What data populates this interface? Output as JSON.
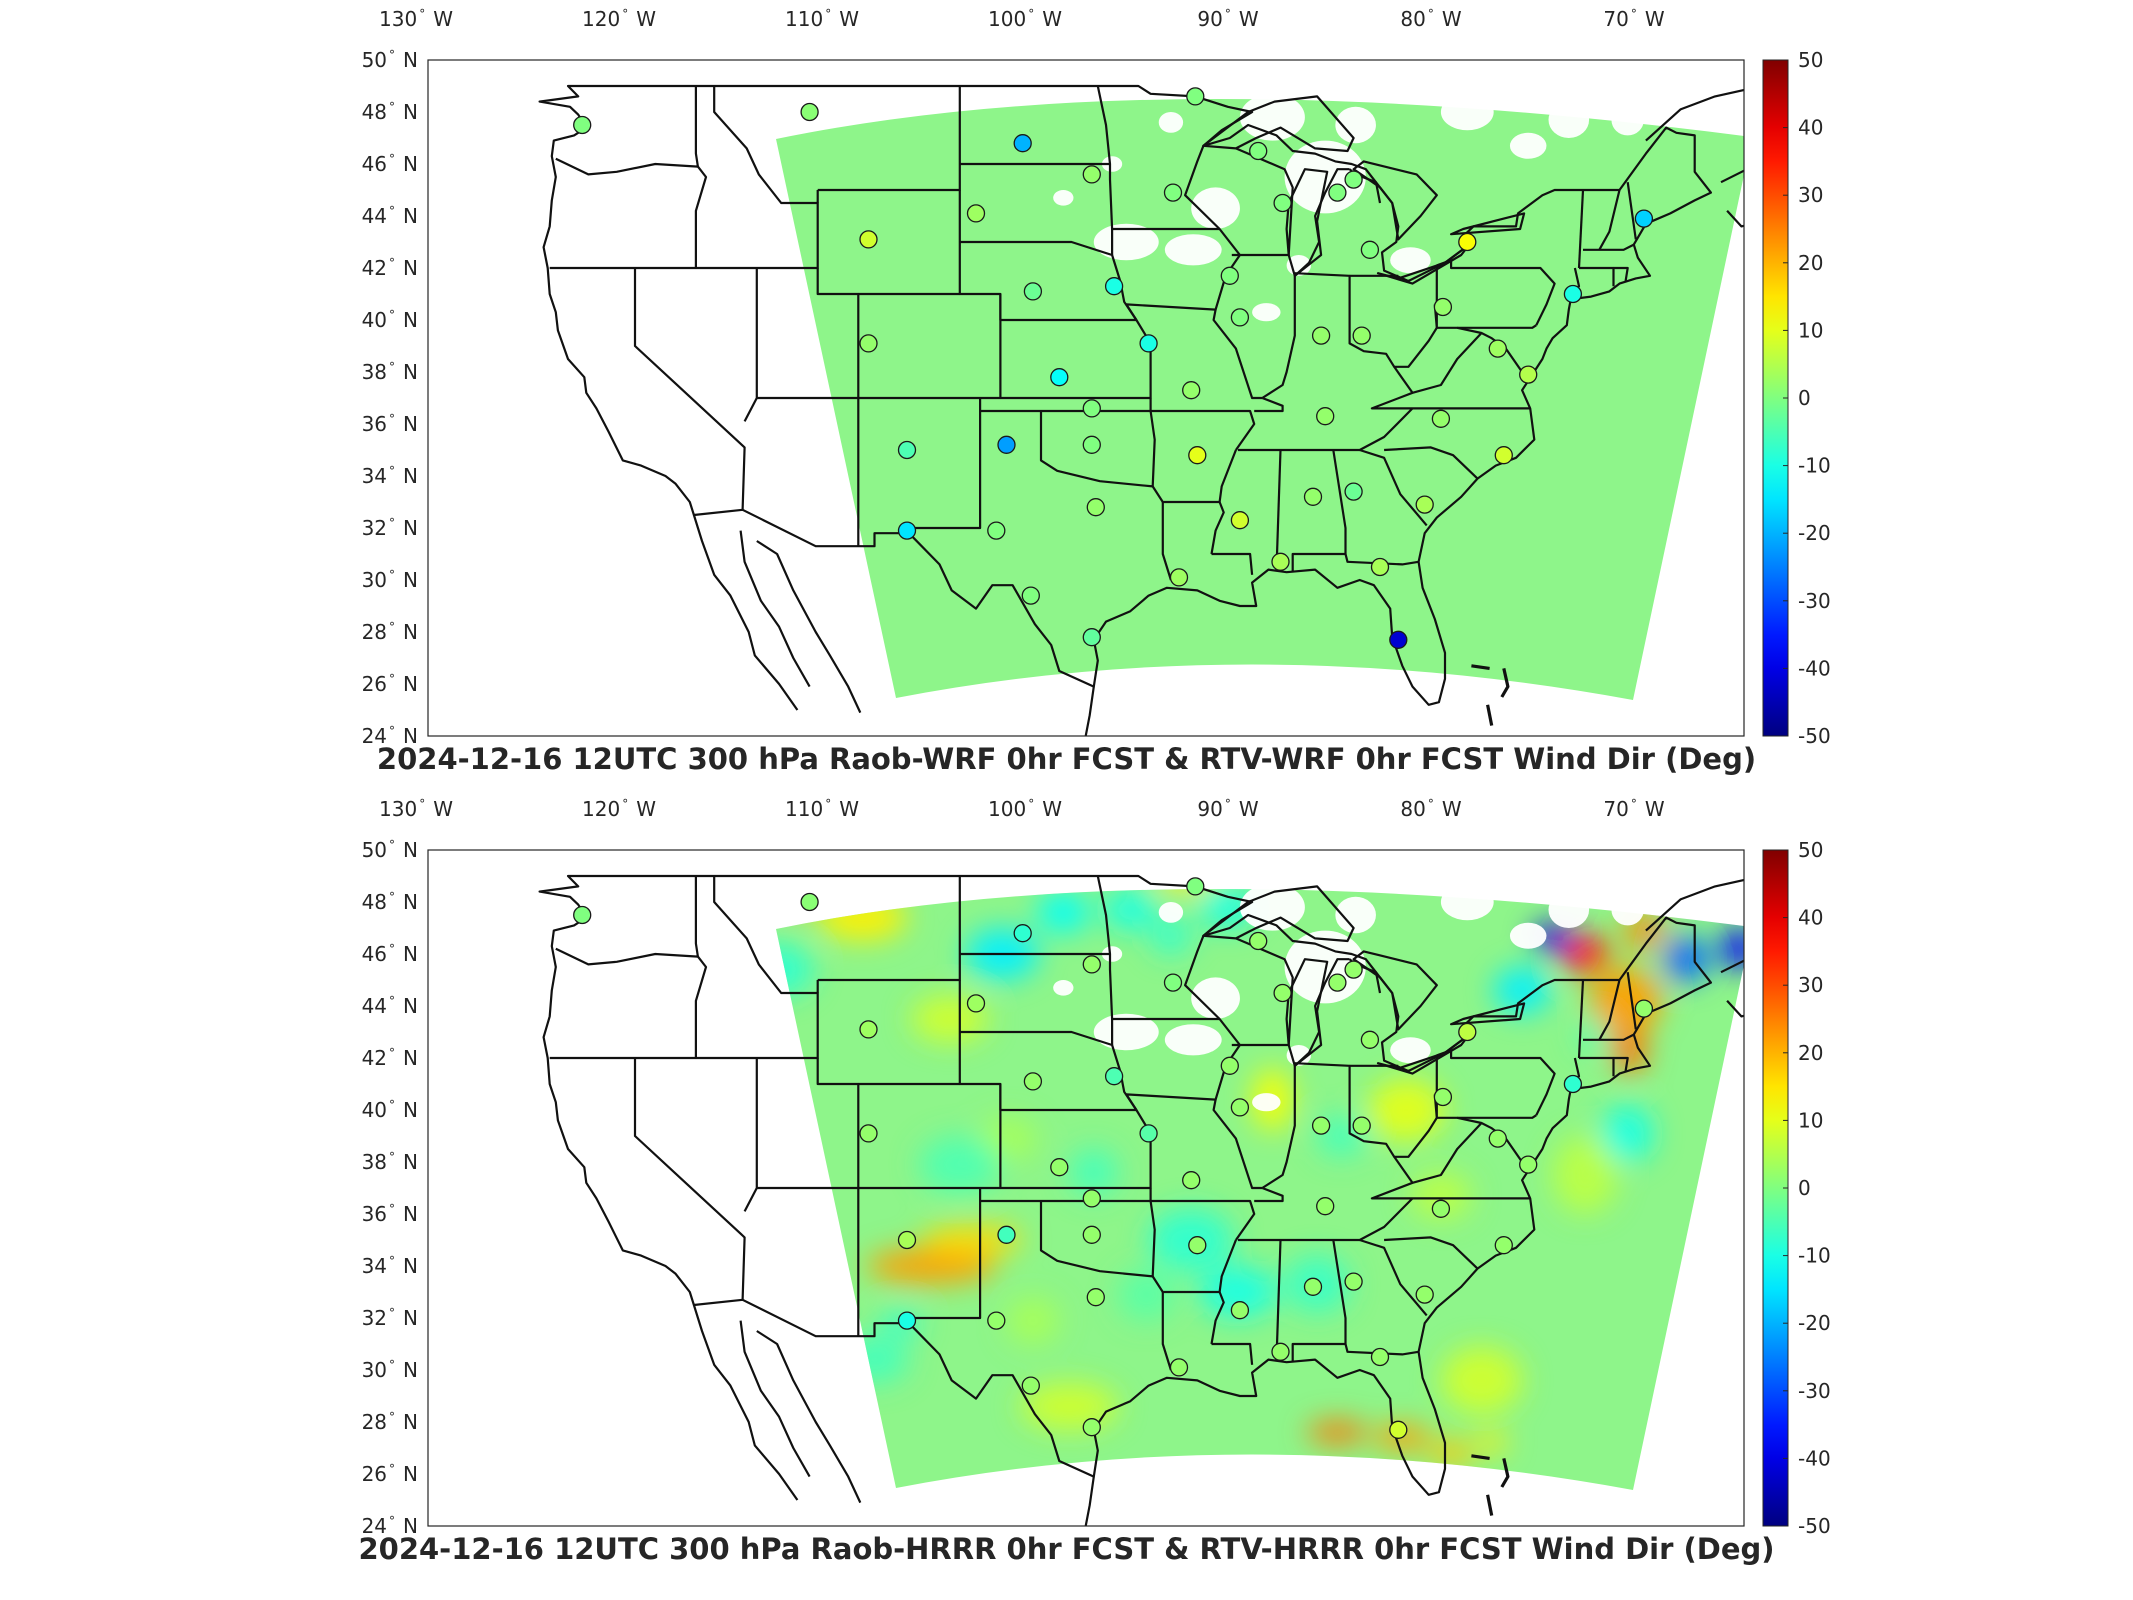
{
  "panels": [
    {
      "id": "wrf",
      "title": "2024-12-16 12UTC 300 hPa Raob-WRF 0hr FCST & RTV-WRF 0hr FCST Wind Dir (Deg)",
      "field": "flat"
    },
    {
      "id": "hrrr",
      "title": "2024-12-16 12UTC 300 hPa Raob-HRRR 0hr FCST & RTV-HRRR 0hr FCST Wind Dir (Deg)",
      "field": "varied"
    }
  ],
  "longitude_ticks": [
    "130",
    "120",
    "110",
    "100",
    "90",
    "80",
    "70"
  ],
  "longitude_hemisphere": "W",
  "latitude_ticks": [
    "50",
    "48",
    "46",
    "44",
    "42",
    "40",
    "38",
    "36",
    "34",
    "32",
    "30",
    "28",
    "26",
    "24"
  ],
  "latitude_hemisphere": "N",
  "degree_symbol": "°",
  "colorbar": {
    "ticks": [
      "50",
      "40",
      "30",
      "20",
      "10",
      "0",
      "-10",
      "-20",
      "-30",
      "-40",
      "-50"
    ],
    "min": -50,
    "max": 50,
    "colormap": "jet"
  },
  "colors": {
    "zero_field": "#8ef58a",
    "state_lines": "#111111",
    "station_outline": "#1a1a1a"
  },
  "stations_top": [
    {
      "lon": -122.6,
      "lat": 47.5,
      "v": 0
    },
    {
      "lon": -111.4,
      "lat": 48.0,
      "v": 1
    },
    {
      "lon": -100.9,
      "lat": 46.8,
      "v": -20
    },
    {
      "lon": -97.5,
      "lat": 45.6,
      "v": 2
    },
    {
      "lon": -93.5,
      "lat": 44.9,
      "v": 0
    },
    {
      "lon": -92.4,
      "lat": 48.6,
      "v": 0
    },
    {
      "lon": -108.5,
      "lat": 43.1,
      "v": 8
    },
    {
      "lon": -103.2,
      "lat": 44.1,
      "v": 3
    },
    {
      "lon": -100.4,
      "lat": 41.1,
      "v": -2
    },
    {
      "lon": -96.4,
      "lat": 41.3,
      "v": -10
    },
    {
      "lon": -108.5,
      "lat": 39.1,
      "v": 2
    },
    {
      "lon": -94.7,
      "lat": 39.1,
      "v": -10
    },
    {
      "lon": -99.1,
      "lat": 37.8,
      "v": -12
    },
    {
      "lon": -97.5,
      "lat": 36.6,
      "v": 0
    },
    {
      "lon": -97.5,
      "lat": 35.2,
      "v": 0
    },
    {
      "lon": -92.3,
      "lat": 34.8,
      "v": 10
    },
    {
      "lon": -106.6,
      "lat": 35.0,
      "v": -5
    },
    {
      "lon": -101.7,
      "lat": 35.2,
      "v": -22
    },
    {
      "lon": -106.6,
      "lat": 31.9,
      "v": -15
    },
    {
      "lon": -102.2,
      "lat": 31.9,
      "v": 0
    },
    {
      "lon": -97.3,
      "lat": 32.8,
      "v": 2
    },
    {
      "lon": -100.5,
      "lat": 29.4,
      "v": 0
    },
    {
      "lon": -97.5,
      "lat": 27.8,
      "v": -3
    },
    {
      "lon": -93.2,
      "lat": 30.1,
      "v": 3
    },
    {
      "lon": -90.2,
      "lat": 32.3,
      "v": 8
    },
    {
      "lon": -88.2,
      "lat": 30.7,
      "v": 4
    },
    {
      "lon": -86.6,
      "lat": 33.2,
      "v": 2
    },
    {
      "lon": -84.6,
      "lat": 33.4,
      "v": -2
    },
    {
      "lon": -83.3,
      "lat": 30.5,
      "v": 4
    },
    {
      "lon": -82.4,
      "lat": 27.7,
      "v": -42
    },
    {
      "lon": -81.1,
      "lat": 32.9,
      "v": 4
    },
    {
      "lon": -80.3,
      "lat": 36.2,
      "v": 2
    },
    {
      "lon": -77.2,
      "lat": 34.8,
      "v": 8
    },
    {
      "lon": -86.0,
      "lat": 36.3,
      "v": 2
    },
    {
      "lon": -90.2,
      "lat": 40.1,
      "v": 0
    },
    {
      "lon": -92.6,
      "lat": 37.3,
      "v": 2
    },
    {
      "lon": -86.2,
      "lat": 39.4,
      "v": 2
    },
    {
      "lon": -83.8,
      "lat": 42.7,
      "v": 0
    },
    {
      "lon": -90.7,
      "lat": 41.7,
      "v": 0
    },
    {
      "lon": -88.1,
      "lat": 44.5,
      "v": 0
    },
    {
      "lon": -85.4,
      "lat": 44.9,
      "v": 0
    },
    {
      "lon": -84.2,
      "lat": 39.4,
      "v": 2
    },
    {
      "lon": -80.2,
      "lat": 40.5,
      "v": 2
    },
    {
      "lon": -77.5,
      "lat": 38.9,
      "v": 3
    },
    {
      "lon": -76.0,
      "lat": 37.9,
      "v": 5
    },
    {
      "lon": -79.0,
      "lat": 43.0,
      "v": 12
    },
    {
      "lon": -73.8,
      "lat": 41.0,
      "v": -10
    },
    {
      "lon": -70.3,
      "lat": 43.9,
      "v": -17
    },
    {
      "lon": -84.6,
      "lat": 45.4,
      "v": 0
    },
    {
      "lon": -89.3,
      "lat": 46.5,
      "v": 0
    }
  ],
  "stations_bottom": [
    {
      "lon": -122.6,
      "lat": 47.5,
      "v": 0
    },
    {
      "lon": -111.4,
      "lat": 48.0,
      "v": 1
    },
    {
      "lon": -100.9,
      "lat": 46.8,
      "v": -8
    },
    {
      "lon": -97.5,
      "lat": 45.6,
      "v": 2
    },
    {
      "lon": -93.5,
      "lat": 44.9,
      "v": 0
    },
    {
      "lon": -92.4,
      "lat": 48.6,
      "v": 0
    },
    {
      "lon": -108.5,
      "lat": 43.1,
      "v": 3
    },
    {
      "lon": -103.2,
      "lat": 44.1,
      "v": 3
    },
    {
      "lon": -100.4,
      "lat": 41.1,
      "v": 2
    },
    {
      "lon": -96.4,
      "lat": 41.3,
      "v": -5
    },
    {
      "lon": -108.5,
      "lat": 39.1,
      "v": 2
    },
    {
      "lon": -94.7,
      "lat": 39.1,
      "v": -4
    },
    {
      "lon": -99.1,
      "lat": 37.8,
      "v": 2
    },
    {
      "lon": -97.5,
      "lat": 36.6,
      "v": 2
    },
    {
      "lon": -97.5,
      "lat": 35.2,
      "v": 2
    },
    {
      "lon": -92.3,
      "lat": 34.8,
      "v": 2
    },
    {
      "lon": -106.6,
      "lat": 35.0,
      "v": 4
    },
    {
      "lon": -101.7,
      "lat": 35.2,
      "v": -6
    },
    {
      "lon": -106.6,
      "lat": 31.9,
      "v": -10
    },
    {
      "lon": -102.2,
      "lat": 31.9,
      "v": 2
    },
    {
      "lon": -97.3,
      "lat": 32.8,
      "v": 2
    },
    {
      "lon": -100.5,
      "lat": 29.4,
      "v": 2
    },
    {
      "lon": -97.5,
      "lat": 27.8,
      "v": 2
    },
    {
      "lon": -93.2,
      "lat": 30.1,
      "v": 2
    },
    {
      "lon": -90.2,
      "lat": 32.3,
      "v": 2
    },
    {
      "lon": -88.2,
      "lat": 30.7,
      "v": 2
    },
    {
      "lon": -86.6,
      "lat": 33.2,
      "v": 2
    },
    {
      "lon": -84.6,
      "lat": 33.4,
      "v": 2
    },
    {
      "lon": -83.3,
      "lat": 30.5,
      "v": 2
    },
    {
      "lon": -82.4,
      "lat": 27.7,
      "v": 8
    },
    {
      "lon": -81.1,
      "lat": 32.9,
      "v": 2
    },
    {
      "lon": -80.3,
      "lat": 36.2,
      "v": 2
    },
    {
      "lon": -77.2,
      "lat": 34.8,
      "v": 2
    },
    {
      "lon": -86.0,
      "lat": 36.3,
      "v": 2
    },
    {
      "lon": -90.2,
      "lat": 40.1,
      "v": 2
    },
    {
      "lon": -92.6,
      "lat": 37.3,
      "v": 2
    },
    {
      "lon": -86.2,
      "lat": 39.4,
      "v": 2
    },
    {
      "lon": -83.8,
      "lat": 42.7,
      "v": 2
    },
    {
      "lon": -90.7,
      "lat": 41.7,
      "v": 2
    },
    {
      "lon": -88.1,
      "lat": 44.5,
      "v": 2
    },
    {
      "lon": -85.4,
      "lat": 44.9,
      "v": 2
    },
    {
      "lon": -84.2,
      "lat": 39.4,
      "v": 2
    },
    {
      "lon": -80.2,
      "lat": 40.5,
      "v": 2
    },
    {
      "lon": -77.5,
      "lat": 38.9,
      "v": 2
    },
    {
      "lon": -76.0,
      "lat": 37.9,
      "v": 2
    },
    {
      "lon": -79.0,
      "lat": 43.0,
      "v": 6
    },
    {
      "lon": -73.8,
      "lat": 41.0,
      "v": -8
    },
    {
      "lon": -70.3,
      "lat": 43.9,
      "v": 2
    },
    {
      "lon": -84.6,
      "lat": 45.4,
      "v": 2
    },
    {
      "lon": -89.3,
      "lat": 46.5,
      "v": 2
    }
  ]
}
